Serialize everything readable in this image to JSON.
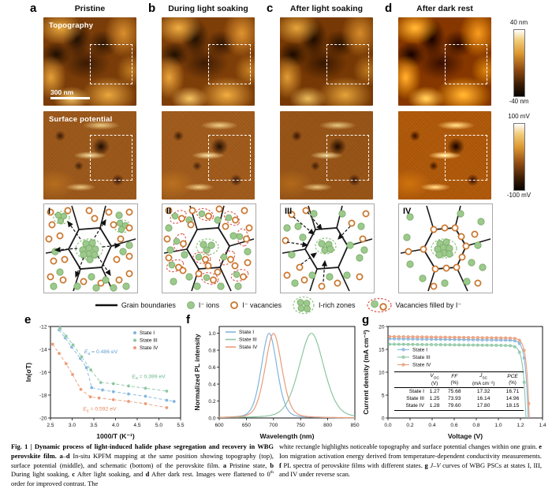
{
  "figure": {
    "top": {
      "letters": [
        "a",
        "b",
        "c",
        "d"
      ],
      "titles": [
        "Pristine",
        "During light soaking",
        "After light soaking",
        "After dark rest"
      ],
      "row1_label": "Topography",
      "row2_label": "Surface potential",
      "scalebar_label": "300 nm",
      "colorbar_topo": {
        "top": "40 nm",
        "bottom": "-40 nm"
      },
      "colorbar_potential": {
        "top": "100 mV",
        "bottom": "-100 mV"
      },
      "schematic_labels": [
        "I",
        "II",
        "III",
        "IV"
      ]
    },
    "bottom": {
      "letters": [
        "e",
        "f",
        "g"
      ]
    }
  },
  "legend": {
    "items": [
      "Grain boundaries",
      "I⁻ ions",
      "I⁻ vacancies",
      "I-rich zones",
      "Vacancies filled by I⁻"
    ]
  },
  "colors": {
    "state1": "#82b4dd",
    "state3": "#8cc6a2",
    "state4": "#eb9b77",
    "ion_fill": "#9cc98c",
    "ion_stroke": "#79a967",
    "vacancy": "#c9742a",
    "irich": "#8bc177",
    "filled": "#d9534f",
    "boundary": "#1a1a1a"
  },
  "chart_data": [
    {
      "id": "e",
      "type": "scatter",
      "xlabel": "1000/T (K⁻¹)",
      "ylabel": "ln(σT)",
      "xlim": [
        2.5,
        5.5
      ],
      "ylim": [
        -20,
        -12
      ],
      "xticks": [
        2.5,
        3.0,
        3.5,
        4.0,
        4.5,
        5.0,
        5.5
      ],
      "yticks": [
        -12,
        -14,
        -16,
        -18,
        -20
      ],
      "legend_position": "top-right",
      "series": [
        {
          "name": "State I",
          "color": "#82b4dd",
          "points": [
            [
              2.7,
              -12.3
            ],
            [
              2.84,
              -13.0
            ],
            [
              2.99,
              -13.8
            ],
            [
              3.19,
              -14.8
            ],
            [
              3.33,
              -15.6
            ],
            [
              3.45,
              -17.35
            ],
            [
              3.7,
              -17.55
            ],
            [
              3.95,
              -17.7
            ],
            [
              4.3,
              -17.9
            ],
            [
              4.69,
              -18.1
            ],
            [
              5.18,
              -18.45
            ],
            [
              5.35,
              -18.55
            ]
          ]
        },
        {
          "name": "State III",
          "color": "#8cc6a2",
          "points": [
            [
              2.72,
              -12.15
            ],
            [
              2.86,
              -12.85
            ],
            [
              3.02,
              -13.6
            ],
            [
              3.22,
              -14.65
            ],
            [
              3.43,
              -15.8
            ],
            [
              3.66,
              -16.9
            ],
            [
              3.95,
              -17.0
            ],
            [
              4.3,
              -17.2
            ],
            [
              4.69,
              -17.4
            ],
            [
              5.18,
              -17.65
            ]
          ]
        },
        {
          "name": "State IV",
          "color": "#eb9b77",
          "points": [
            [
              2.55,
              -13.55
            ],
            [
              2.7,
              -14.35
            ],
            [
              2.86,
              -15.25
            ],
            [
              3.01,
              -16.2
            ],
            [
              3.2,
              -17.5
            ],
            [
              3.42,
              -18.15
            ],
            [
              3.62,
              -18.25
            ],
            [
              3.95,
              -18.4
            ],
            [
              4.3,
              -18.55
            ],
            [
              4.69,
              -18.75
            ],
            [
              5.18,
              -19.1
            ]
          ]
        }
      ],
      "annotations": [
        {
          "ea_value": "0.486 eV",
          "x": 3.28,
          "y": -14.35,
          "color": "#5e9fd0"
        },
        {
          "ea_value": "0.399 eV",
          "x": 4.38,
          "y": -16.5,
          "color": "#6cb58a"
        },
        {
          "ea_value": "0.592 eV",
          "x": 3.25,
          "y": -19.35,
          "color": "#e4855b"
        }
      ]
    },
    {
      "id": "f",
      "type": "line",
      "xlabel": "Wavelength (nm)",
      "ylabel": "Normalized PL intensity",
      "xlim": [
        600,
        850
      ],
      "ylim": [
        0,
        1.08
      ],
      "xticks": [
        600,
        650,
        700,
        750,
        800,
        850
      ],
      "yticks": [
        0.0,
        0.2,
        0.4,
        0.6,
        0.8,
        1.0
      ],
      "legend_position": "top-left",
      "series": [
        {
          "name": "State I",
          "color": "#82b4dd",
          "peak_nm": 692,
          "width_nm": 15,
          "peak_value": 1.0
        },
        {
          "name": "State III",
          "color": "#8cc6a2",
          "peak_nm": 770,
          "width_nm": 24,
          "peak_value": 1.0
        },
        {
          "name": "State IV",
          "color": "#eb9b77",
          "peak_nm": 700,
          "width_nm": 16,
          "peak_value": 1.0
        }
      ]
    },
    {
      "id": "g",
      "type": "line",
      "xlabel": "Voltage (V)",
      "ylabel": "Current density (mA cm⁻²)",
      "xlim": [
        0,
        1.4
      ],
      "ylim": [
        0,
        20
      ],
      "xticks": [
        0.0,
        0.2,
        0.4,
        0.6,
        0.8,
        1.0,
        1.2,
        1.4
      ],
      "yticks": [
        0,
        5,
        10,
        15,
        20
      ],
      "legend_position": "left-middle",
      "series": [
        {
          "name": "State I",
          "color": "#82b4dd",
          "voc": 1.27,
          "jsc": 17.32
        },
        {
          "name": "State III",
          "color": "#8cc6a2",
          "voc": 1.25,
          "jsc": 16.14
        },
        {
          "name": "State IV",
          "color": "#eb9b77",
          "voc": 1.28,
          "jsc": 17.8
        }
      ],
      "table": {
        "columns": [
          {
            "sym": "V",
            "sub": "OC",
            "unit": "(V)"
          },
          {
            "sym": "FF",
            "sub": "",
            "unit": "(%)"
          },
          {
            "sym": "J",
            "sub": "SC",
            "unit": "(mA cm⁻²)"
          },
          {
            "sym": "PCE",
            "sub": "",
            "unit": "(%)"
          }
        ],
        "row_headers": [
          "State I",
          "State III",
          "State IV"
        ],
        "values": [
          [
            "1.27",
            "75.68",
            "17.32",
            "16.71"
          ],
          [
            "1.25",
            "73.93",
            "16.14",
            "14.96"
          ],
          [
            "1.28",
            "79.60",
            "17.80",
            "18.15"
          ]
        ]
      }
    }
  ],
  "caption": {
    "left_runs": [
      {
        "t": "Fig. 1 | Dynamic process of light-induced halide phase segregation and recovery in WBG perovskite film. ",
        "b": true
      },
      {
        "t": "a",
        "b": true
      },
      {
        "t": "–"
      },
      {
        "t": "d",
        "b": true
      },
      {
        "t": " In-situ KPFM mapping at the same position showing topography (top), surface potential (middle), and schematic (bottom) of the perovskite film. "
      },
      {
        "t": "a",
        "b": true
      },
      {
        "t": " Pristine state, "
      },
      {
        "t": "b",
        "b": true
      },
      {
        "t": " During light soaking, "
      },
      {
        "t": "c",
        "b": true
      },
      {
        "t": " After light soaking, and "
      },
      {
        "t": "d",
        "b": true
      },
      {
        "t": " After dark rest. Images were flattened to 0"
      },
      {
        "t": "th",
        "sup": true
      },
      {
        "t": " order for improved contrast. The"
      }
    ],
    "right_runs": [
      {
        "t": "white rectangle highlights noticeable topography and surface potential changes within one grain. "
      },
      {
        "t": "e",
        "b": true
      },
      {
        "t": " Ion migration activation energy derived from temperature-dependent conductivity measurements. "
      },
      {
        "t": "f",
        "b": true
      },
      {
        "t": " PL spectra of perovskite films with different states. "
      },
      {
        "t": "g",
        "b": true
      },
      {
        "t": " "
      },
      {
        "t": "J–V",
        "i": true
      },
      {
        "t": " curves of WBG PSCs at states I, III, and IV under reverse scan."
      }
    ]
  }
}
